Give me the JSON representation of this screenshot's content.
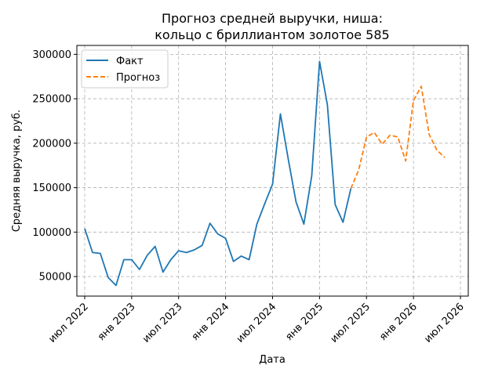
{
  "chart_data": {
    "type": "line",
    "title_line1": "Прогноз средней выручки, ниша:",
    "title_line2": "кольцо с бриллиантом золотое 585",
    "xlabel": "Дата",
    "ylabel": "Средняя выручка, руб.",
    "ylim": [
      28000,
      310000
    ],
    "xlim": [
      "2022-06",
      "2026-08"
    ],
    "grid": true,
    "legend_position": "top-left",
    "yticks": [
      50000,
      100000,
      150000,
      200000,
      250000,
      300000
    ],
    "ytick_labels": [
      "50000",
      "100000",
      "150000",
      "200000",
      "250000",
      "300000"
    ],
    "xticks": [
      "2022-07",
      "2023-01",
      "2023-07",
      "2024-01",
      "2024-07",
      "2025-01",
      "2025-07",
      "2026-01",
      "2026-07"
    ],
    "xtick_labels": [
      "июл 2022",
      "янв 2023",
      "июл 2023",
      "янв 2024",
      "июл 2024",
      "янв 2025",
      "июл 2025",
      "янв 2026",
      "июл 2026"
    ],
    "series": [
      {
        "name": "Факт",
        "color": "#1f77b4",
        "style": "solid",
        "x": [
          "2022-07",
          "2022-08",
          "2022-09",
          "2022-10",
          "2022-11",
          "2022-12",
          "2023-01",
          "2023-02",
          "2023-03",
          "2023-04",
          "2023-05",
          "2023-06",
          "2023-07",
          "2023-08",
          "2023-09",
          "2023-10",
          "2023-11",
          "2023-12",
          "2024-01",
          "2024-02",
          "2024-03",
          "2024-04",
          "2024-05",
          "2024-06",
          "2024-07",
          "2024-08",
          "2024-09",
          "2024-10",
          "2024-11",
          "2024-12",
          "2025-01",
          "2025-02",
          "2025-03",
          "2025-04",
          "2025-05"
        ],
        "values": [
          104000,
          77000,
          76000,
          49000,
          40000,
          69000,
          69000,
          58000,
          74000,
          84000,
          55000,
          69000,
          79000,
          77000,
          80000,
          85000,
          110000,
          98000,
          93000,
          67000,
          73000,
          69000,
          109000,
          132000,
          154000,
          233000,
          182000,
          134000,
          109000,
          163000,
          292000,
          243000,
          131000,
          111000,
          149000
        ]
      },
      {
        "name": "Прогноз",
        "color": "#ff7f0e",
        "style": "dashed",
        "x": [
          "2025-05",
          "2025-06",
          "2025-07",
          "2025-08",
          "2025-09",
          "2025-10",
          "2025-11",
          "2025-12",
          "2026-01",
          "2026-02",
          "2026-03",
          "2026-04",
          "2026-05"
        ],
        "values": [
          149000,
          170000,
          207000,
          212000,
          199000,
          209000,
          207000,
          180000,
          248000,
          264000,
          210000,
          192000,
          184000
        ]
      }
    ]
  }
}
